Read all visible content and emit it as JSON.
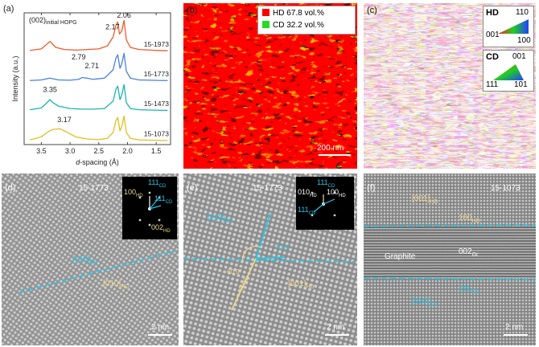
{
  "colors": {
    "hd_red": "#ff0000",
    "cd_green": "#22dd22",
    "cyan_annotation": "#22c7e8",
    "yellow_annotation": "#f0d890",
    "xrd_15_1973": "#f05a28",
    "xrd_15_1773": "#4a7fe0",
    "xrd_15_1473": "#18b6b0",
    "xrd_15_1073": "#e0c020"
  },
  "panel_a": {
    "label": "(a)",
    "header_prefix": "(002)",
    "header_sub": "initial HOPG",
    "ylabel": "Intensity (a.u.)",
    "xlabel": "d-spacing (Å)",
    "peak_labels": [
      "2.06",
      "2.17",
      "2.79",
      "2.71",
      "3.35",
      "3.17"
    ]
  },
  "chart_data": {
    "type": "line",
    "title": "(002) initial HOPG",
    "xlabel": "d-spacing (Å)",
    "ylabel": "Intensity (a.u.)",
    "xlim": [
      3.8,
      1.25
    ],
    "xticks": [
      3.5,
      3.0,
      2.5,
      2.0,
      1.5
    ],
    "xreversed": true,
    "yticks_shown": false,
    "series": [
      {
        "name": "15-1973",
        "color": "#f05a28",
        "offset": 3.0,
        "x": [
          3.7,
          3.5,
          3.35,
          3.25,
          3.1,
          2.9,
          2.7,
          2.5,
          2.35,
          2.25,
          2.2,
          2.17,
          2.14,
          2.1,
          2.06,
          2.02,
          1.95,
          1.8,
          1.6,
          1.4,
          1.3
        ],
        "y": [
          0.05,
          0.1,
          0.35,
          0.15,
          0.08,
          0.06,
          0.08,
          0.1,
          0.2,
          0.5,
          0.9,
          1.0,
          0.6,
          0.7,
          1.05,
          0.4,
          0.15,
          0.08,
          0.06,
          0.04,
          0.04
        ]
      },
      {
        "name": "15-1773",
        "color": "#4a7fe0",
        "offset": 2.0,
        "x": [
          3.7,
          3.5,
          3.35,
          3.2,
          3.0,
          2.85,
          2.79,
          2.71,
          2.6,
          2.4,
          2.25,
          2.2,
          2.17,
          2.13,
          2.1,
          2.06,
          2.02,
          1.95,
          1.8,
          1.6,
          1.4,
          1.3
        ],
        "y": [
          0.04,
          0.06,
          0.12,
          0.06,
          0.05,
          0.08,
          0.14,
          0.12,
          0.08,
          0.12,
          0.4,
          0.8,
          0.9,
          0.45,
          0.6,
          0.95,
          0.35,
          0.12,
          0.06,
          0.05,
          0.04,
          0.04
        ]
      },
      {
        "name": "15-1473",
        "color": "#18b6b0",
        "offset": 1.0,
        "x": [
          3.7,
          3.5,
          3.4,
          3.35,
          3.3,
          3.2,
          3.0,
          2.8,
          2.6,
          2.4,
          2.25,
          2.2,
          2.17,
          2.13,
          2.1,
          2.06,
          2.02,
          1.95,
          1.8,
          1.6,
          1.4,
          1.3
        ],
        "y": [
          0.06,
          0.12,
          0.3,
          0.4,
          0.3,
          0.18,
          0.1,
          0.08,
          0.08,
          0.1,
          0.35,
          0.75,
          0.85,
          0.4,
          0.55,
          0.9,
          0.3,
          0.1,
          0.06,
          0.05,
          0.04,
          0.04
        ]
      },
      {
        "name": "15-1073",
        "color": "#e0c020",
        "offset": 0.0,
        "x": [
          3.7,
          3.5,
          3.4,
          3.3,
          3.17,
          3.05,
          2.9,
          2.7,
          2.5,
          2.35,
          2.25,
          2.2,
          2.17,
          2.13,
          2.1,
          2.06,
          2.02,
          1.95,
          1.8,
          1.6,
          1.4,
          1.3
        ],
        "y": [
          0.05,
          0.15,
          0.3,
          0.4,
          0.42,
          0.3,
          0.15,
          0.08,
          0.06,
          0.1,
          0.3,
          0.7,
          0.8,
          0.35,
          0.5,
          0.85,
          0.3,
          0.1,
          0.05,
          0.04,
          0.03,
          0.03
        ]
      }
    ],
    "annotations": [
      {
        "text": "2.06",
        "x": 2.06
      },
      {
        "text": "2.17",
        "x": 2.17
      },
      {
        "text": "2.79",
        "x": 2.79
      },
      {
        "text": "2.71",
        "x": 2.71
      },
      {
        "text": "3.35",
        "x": 3.35
      },
      {
        "text": "3.17",
        "x": 3.17
      }
    ]
  },
  "panel_b": {
    "label": "(b)",
    "legend": [
      {
        "name": "HD 67.8 vol.%",
        "color": "#ff0000"
      },
      {
        "name": "CD 32.2 vol.%",
        "color": "#22dd22"
      }
    ],
    "scalebar": "200 nm"
  },
  "panel_c": {
    "label": "(c)",
    "key_hd": {
      "title": "HD",
      "top": "110",
      "left": "001",
      "right": "100"
    },
    "key_cd": {
      "title": "CD",
      "top": "001",
      "left": "111",
      "right": "101"
    }
  },
  "panel_d": {
    "label": "(d)",
    "sample": "15-1773",
    "fft": {
      "a": "100",
      "a_sub": "HD",
      "b": "111",
      "b_sub": "CD",
      "c": "111",
      "c_sub": "CD",
      "d": "002",
      "d_sub": "HD"
    },
    "cyan_label": "[110]",
    "cyan_sub": "CD",
    "yellow_label": "[010]",
    "yellow_sub": "HD",
    "scalebar": "2 nm"
  },
  "panel_e": {
    "label": "(e)",
    "sample": "15-1773",
    "fft": {
      "a": "010",
      "a_sub": "HD",
      "b": "100",
      "b_sub": "HD",
      "c": "111",
      "c_sub": "CD",
      "d": "111",
      "d_sub": "CD"
    },
    "cyan_label": "[110]",
    "cyan_sub": "CD",
    "angle_1": "70.5°",
    "angle_2": "60.0°",
    "yellow_line_label": "(100)",
    "yellow_label": "[001]",
    "yellow_sub": "HD",
    "scalebar": "2 nm"
  },
  "panel_f": {
    "label": "(f)",
    "sample": "15-1073",
    "top_label": "[001]",
    "top_sub": "HD",
    "hd_plane": "100",
    "hd_plane_sub": "HD",
    "graphite": "Graphite",
    "gr_plane": "002",
    "gr_plane_sub": "Gr",
    "cd_plane": "111",
    "cd_plane_sub": "CD",
    "bottom_label": "[110]",
    "bottom_sub": "CD",
    "scalebar": "2 nm"
  }
}
